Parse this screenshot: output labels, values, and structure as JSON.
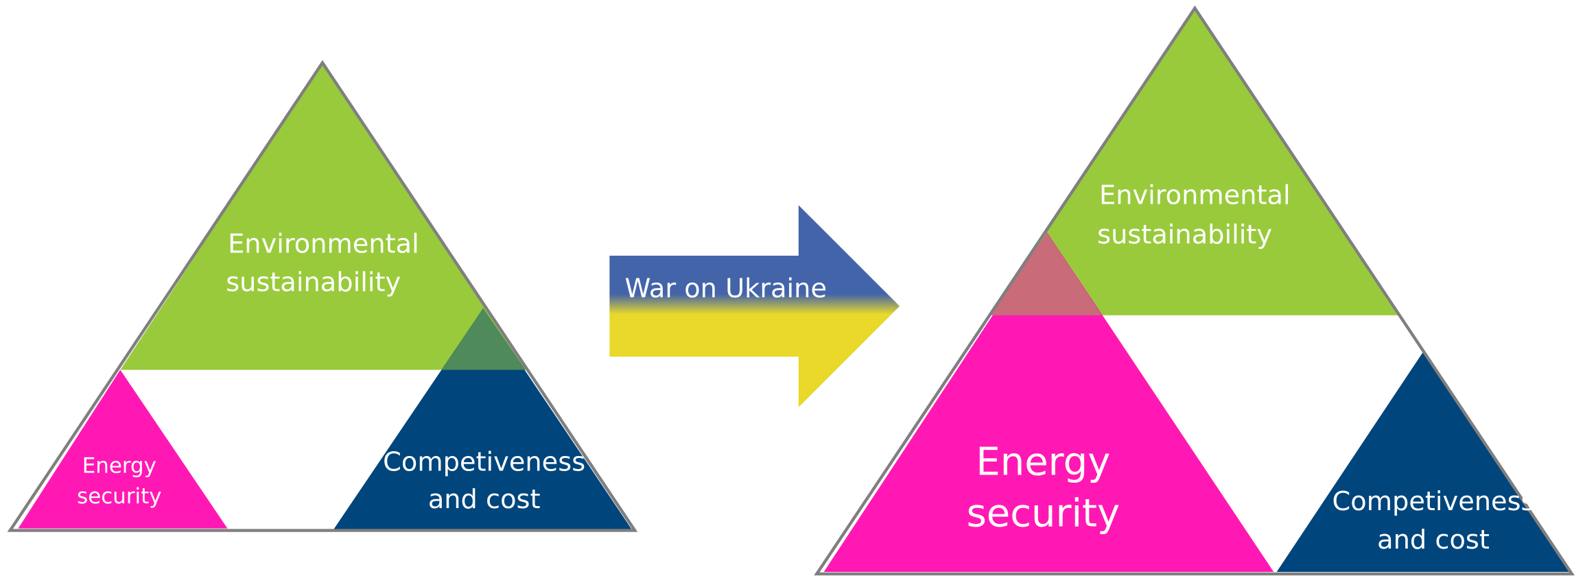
{
  "before": {
    "environmental": [
      "Environmental",
      "sustainability"
    ],
    "energy": [
      "Energy",
      "security"
    ],
    "competitiveness": [
      "Competiveness",
      "and cost"
    ]
  },
  "arrow": {
    "label": "War on Ukraine"
  },
  "after": {
    "environmental": [
      "Environmental",
      "sustainability"
    ],
    "energy": [
      "Energy",
      "security"
    ],
    "competitiveness": [
      "Competiveness",
      "and cost"
    ]
  }
}
